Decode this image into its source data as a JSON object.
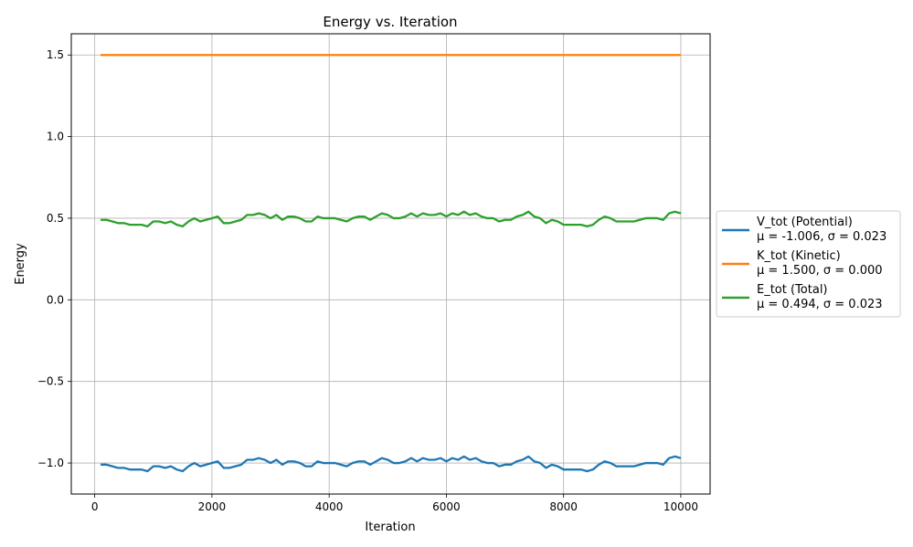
{
  "chart_data": {
    "type": "line",
    "title": "Energy vs. Iteration",
    "xlabel": "Iteration",
    "ylabel": "Energy",
    "xlim": [
      -400,
      10500
    ],
    "ylim": [
      -1.19,
      1.63
    ],
    "xticks": [
      0,
      2000,
      4000,
      6000,
      8000,
      10000
    ],
    "xtick_labels": [
      "0",
      "2000",
      "4000",
      "6000",
      "8000",
      "10000"
    ],
    "yticks": [
      -1.0,
      -0.5,
      0.0,
      0.5,
      1.0,
      1.5
    ],
    "ytick_labels": [
      "−1.0",
      "−0.5",
      "0.0",
      "0.5",
      "1.0",
      "1.5"
    ],
    "grid": true,
    "legend_position": "right-outside",
    "x": [
      100,
      200,
      300,
      400,
      500,
      600,
      700,
      800,
      900,
      1000,
      1100,
      1200,
      1300,
      1400,
      1500,
      1600,
      1700,
      1800,
      1900,
      2000,
      2100,
      2200,
      2300,
      2400,
      2500,
      2600,
      2700,
      2800,
      2900,
      3000,
      3100,
      3200,
      3300,
      3400,
      3500,
      3600,
      3700,
      3800,
      3900,
      4000,
      4100,
      4200,
      4300,
      4400,
      4500,
      4600,
      4700,
      4800,
      4900,
      5000,
      5100,
      5200,
      5300,
      5400,
      5500,
      5600,
      5700,
      5800,
      5900,
      6000,
      6100,
      6200,
      6300,
      6400,
      6500,
      6600,
      6700,
      6800,
      6900,
      7000,
      7100,
      7200,
      7300,
      7400,
      7500,
      7600,
      7700,
      7800,
      7900,
      8000,
      8100,
      8200,
      8300,
      8400,
      8500,
      8600,
      8700,
      8800,
      8900,
      9000,
      9100,
      9200,
      9300,
      9400,
      9500,
      9600,
      9700,
      9800,
      9900,
      10000
    ],
    "series": [
      {
        "name": "V_tot (Potential)",
        "stats": "μ = -1.006, σ = 0.023",
        "color": "#1f77b4",
        "values": [
          -1.01,
          -1.01,
          -1.02,
          -1.03,
          -1.03,
          -1.04,
          -1.04,
          -1.04,
          -1.05,
          -1.02,
          -1.02,
          -1.03,
          -1.02,
          -1.04,
          -1.05,
          -1.02,
          -1.0,
          -1.02,
          -1.01,
          -1.0,
          -0.99,
          -1.03,
          -1.03,
          -1.02,
          -1.01,
          -0.98,
          -0.98,
          -0.97,
          -0.98,
          -1.0,
          -0.98,
          -1.01,
          -0.99,
          -0.99,
          -1.0,
          -1.02,
          -1.02,
          -0.99,
          -1.0,
          -1.0,
          -1.0,
          -1.01,
          -1.02,
          -1.0,
          -0.99,
          -0.99,
          -1.01,
          -0.99,
          -0.97,
          -0.98,
          -1.0,
          -1.0,
          -0.99,
          -0.97,
          -0.99,
          -0.97,
          -0.98,
          -0.98,
          -0.97,
          -0.99,
          -0.97,
          -0.98,
          -0.96,
          -0.98,
          -0.97,
          -0.99,
          -1.0,
          -1.0,
          -1.02,
          -1.01,
          -1.01,
          -0.99,
          -0.98,
          -0.96,
          -0.99,
          -1.0,
          -1.03,
          -1.01,
          -1.02,
          -1.04,
          -1.04,
          -1.04,
          -1.04,
          -1.05,
          -1.04,
          -1.01,
          -0.99,
          -1.0,
          -1.02,
          -1.02,
          -1.02,
          -1.02,
          -1.01,
          -1.0,
          -1.0,
          -1.0,
          -1.01,
          -0.97,
          -0.96,
          -0.97
        ]
      },
      {
        "name": "K_tot (Kinetic)",
        "stats": "μ = 1.500, σ = 0.000",
        "color": "#ff7f0e",
        "constant": 1.5
      },
      {
        "name": "E_tot (Total)",
        "stats": "μ = 0.494, σ = 0.023",
        "color": "#2ca02c",
        "values": [
          0.49,
          0.49,
          0.48,
          0.47,
          0.47,
          0.46,
          0.46,
          0.46,
          0.45,
          0.48,
          0.48,
          0.47,
          0.48,
          0.46,
          0.45,
          0.48,
          0.5,
          0.48,
          0.49,
          0.5,
          0.51,
          0.47,
          0.47,
          0.48,
          0.49,
          0.52,
          0.52,
          0.53,
          0.52,
          0.5,
          0.52,
          0.49,
          0.51,
          0.51,
          0.5,
          0.48,
          0.48,
          0.51,
          0.5,
          0.5,
          0.5,
          0.49,
          0.48,
          0.5,
          0.51,
          0.51,
          0.49,
          0.51,
          0.53,
          0.52,
          0.5,
          0.5,
          0.51,
          0.53,
          0.51,
          0.53,
          0.52,
          0.52,
          0.53,
          0.51,
          0.53,
          0.52,
          0.54,
          0.52,
          0.53,
          0.51,
          0.5,
          0.5,
          0.48,
          0.49,
          0.49,
          0.51,
          0.52,
          0.54,
          0.51,
          0.5,
          0.47,
          0.49,
          0.48,
          0.46,
          0.46,
          0.46,
          0.46,
          0.45,
          0.46,
          0.49,
          0.51,
          0.5,
          0.48,
          0.48,
          0.48,
          0.48,
          0.49,
          0.5,
          0.5,
          0.5,
          0.49,
          0.53,
          0.54,
          0.53
        ]
      }
    ]
  }
}
